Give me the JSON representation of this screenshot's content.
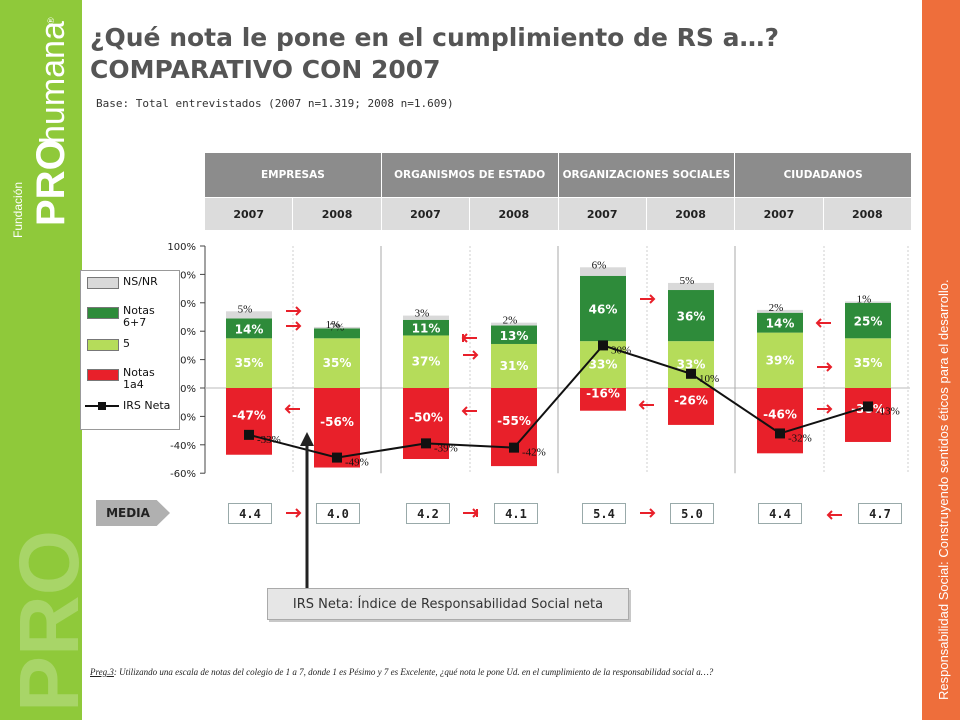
{
  "branding": {
    "left_band": {
      "fundacion": "Fundación",
      "pro": "PRO",
      "humana": "humana",
      "registered": "®"
    },
    "right_band_text": "Responsabilidad Social: Construyendo sentidos éticos para el desarrollo.",
    "colors": {
      "green": "#8fc93a",
      "orange": "#ee6e3b",
      "title_gray": "#555555"
    }
  },
  "title": {
    "line1": "¿Qué nota le pone en el cumplimiento de RS a…?",
    "line2": "COMPARATIVO CON 2007"
  },
  "base": "Base:  Total entrevistados  (2007 n=1.319; 2008 n=1.609)",
  "table_header": {
    "groups": [
      "EMPRESAS",
      "ORGANISMOS DE ESTADO",
      "ORGANIZACIONES SOCIALES",
      "CIUDADANOS"
    ],
    "years": [
      "2007",
      "2008",
      "2007",
      "2008",
      "2007",
      "2008",
      "2007",
      "2008"
    ]
  },
  "legend": {
    "items": [
      "NS/NR",
      "Notas 6+7",
      "5",
      "Notas 1a4",
      "IRS Neta"
    ],
    "colors": {
      "nsnr": "#d9d9d9",
      "notas67": "#2e8b3a",
      "n5": "#b5dc5a",
      "notas14": "#e8202a",
      "line": "#111111"
    }
  },
  "chart_data": {
    "type": "bar",
    "stacked": true,
    "categories": [
      "EMPRESAS 2007",
      "EMPRESAS 2008",
      "ORGANISMOS DE ESTADO 2007",
      "ORGANISMOS DE ESTADO 2008",
      "ORGANIZACIONES SOCIALES 2007",
      "ORGANIZACIONES SOCIALES 2008",
      "CIUDADANOS 2007",
      "CIUDADANOS 2008"
    ],
    "ylim": [
      -60,
      100
    ],
    "yticks": [
      "100%",
      "80%",
      "60%",
      "40%",
      "20%",
      "0%",
      "-20%",
      "-40%",
      "-60%"
    ],
    "series": [
      {
        "name": "5",
        "values": [
          35,
          35,
          37,
          31,
          33,
          33,
          39,
          35
        ],
        "labels": [
          "35%",
          "35%",
          "37%",
          "31%",
          "33%",
          "33%",
          "39%",
          "35%"
        ]
      },
      {
        "name": "Notas 6+7",
        "values": [
          14,
          7,
          11,
          13,
          46,
          36,
          14,
          25
        ],
        "labels": [
          "14%",
          "7%",
          "11%",
          "13%",
          "46%",
          "36%",
          "14%",
          "25%"
        ]
      },
      {
        "name": "NS/NR",
        "values": [
          5,
          1,
          3,
          2,
          6,
          5,
          2,
          1
        ],
        "labels": [
          "5%",
          "1%",
          "3%",
          "2%",
          "6%",
          "5%",
          "2%",
          "1%"
        ]
      },
      {
        "name": "Notas 1a4",
        "values": [
          -47,
          -56,
          -50,
          -55,
          -16,
          -26,
          -46,
          -38
        ],
        "labels": [
          "-47%",
          "-56%",
          "-50%",
          "-55%",
          "-16%",
          "-26%",
          "-46%",
          "-38%"
        ]
      },
      {
        "name": "IRS Neta",
        "type": "line",
        "values": [
          -33,
          -49,
          -39,
          -42,
          30,
          10,
          -32,
          -13
        ],
        "labels": [
          "-33%",
          "-49%",
          "-39%",
          "-42%",
          "30%",
          "10%",
          "-32%",
          "-13%"
        ]
      }
    ],
    "trend_arrows": [
      {
        "between": [
          0,
          1
        ],
        "series": "Notas 6+7",
        "direction": "right"
      },
      {
        "between": [
          0,
          1
        ],
        "series": "5",
        "direction": "right"
      },
      {
        "between": [
          0,
          1
        ],
        "series": "Notas 1a4",
        "direction": "left"
      },
      {
        "between": [
          2,
          3
        ],
        "series": "Notas 6+7",
        "direction": "left"
      },
      {
        "between": [
          2,
          3
        ],
        "series": "5",
        "direction": "right"
      },
      {
        "between": [
          2,
          3
        ],
        "series": "Notas 1a4",
        "direction": "left"
      },
      {
        "between": [
          4,
          5
        ],
        "series": "Notas 6+7",
        "direction": "right"
      },
      {
        "between": [
          4,
          5
        ],
        "series": "Notas 1a4",
        "direction": "left"
      },
      {
        "between": [
          6,
          7
        ],
        "series": "Notas 6+7",
        "direction": "left"
      },
      {
        "between": [
          6,
          7
        ],
        "series": "5",
        "direction": "right"
      },
      {
        "between": [
          6,
          7
        ],
        "series": "Notas 1a4",
        "direction": "right"
      }
    ],
    "colors": {
      "nsnr": "#d9d9d9",
      "notas67": "#2e8b3a",
      "n5": "#b5dc5a",
      "notas14": "#e8202a",
      "arrow": "#e8202a"
    }
  },
  "media": {
    "label": "MEDIA",
    "values": [
      "4.4",
      "4.0",
      "4.2",
      "4.1",
      "5.4",
      "5.0",
      "4.4",
      "4.7"
    ]
  },
  "note": "IRS Neta: Índice de Responsabilidad Social neta",
  "question": {
    "label": "Preg.3",
    "text": ": Utilizando una escala de notas del colegio de 1 a 7, donde 1 es Pésimo y 7 es Excelente, ¿qué nota le pone Ud. en el cumplimiento de la responsabilidad social a…?"
  }
}
